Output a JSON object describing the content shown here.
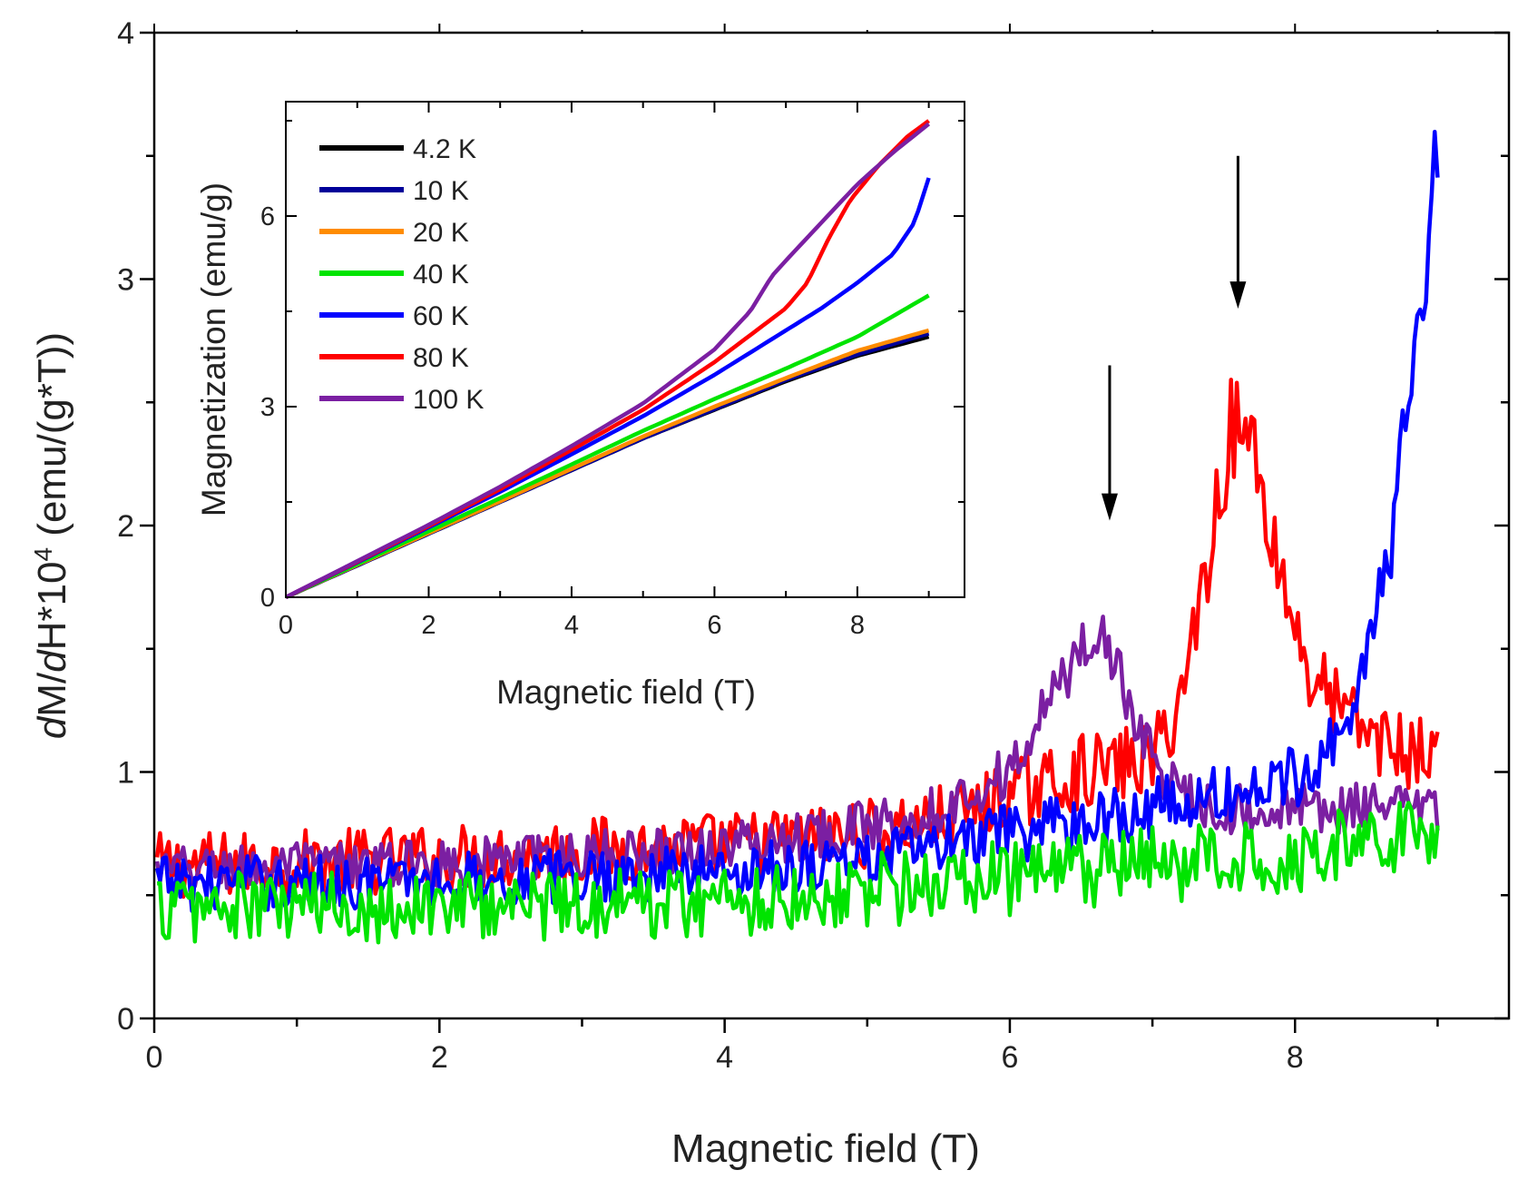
{
  "chart_data": [
    {
      "type": "line",
      "role": "main",
      "xlabel": "Magnetic field (T)",
      "ylabel": {
        "pre": "d",
        "main": "M/",
        "d": "d",
        "h": "H*10",
        "sup": "4",
        "unit": " (emu/(g*T))"
      },
      "xlim": [
        0,
        9.5
      ],
      "ylim": [
        0,
        4
      ],
      "xticks": [
        0,
        2,
        4,
        6,
        8
      ],
      "yticks": [
        0,
        1,
        2,
        3,
        4
      ],
      "grid": false,
      "series": [
        {
          "color": "#ff0000",
          "noise": 0.07,
          "x": [
            0,
            1,
            2,
            3,
            4,
            5,
            5.5,
            6,
            6.5,
            7,
            7.2,
            7.4,
            7.55,
            7.7,
            7.9,
            8.1,
            8.4,
            8.7,
            9.0
          ],
          "y": [
            0.62,
            0.63,
            0.65,
            0.68,
            0.7,
            0.75,
            0.8,
            0.9,
            1.0,
            1.05,
            1.3,
            1.9,
            2.4,
            2.35,
            1.8,
            1.4,
            1.2,
            1.1,
            1.05
          ]
        },
        {
          "color": "#7b1fa2",
          "noise": 0.05,
          "x": [
            0,
            1,
            2,
            3,
            4,
            5,
            5.5,
            6,
            6.3,
            6.5,
            6.65,
            6.75,
            6.9,
            7.1,
            7.5,
            8.0,
            8.5,
            9.0
          ],
          "y": [
            0.6,
            0.62,
            0.63,
            0.66,
            0.7,
            0.78,
            0.85,
            1.0,
            1.3,
            1.5,
            1.6,
            1.4,
            1.2,
            0.95,
            0.85,
            0.85,
            0.85,
            0.85
          ]
        },
        {
          "color": "#0000ff",
          "noise": 0.06,
          "x": [
            0,
            1,
            2,
            3,
            4,
            5,
            6,
            7,
            7.5,
            8,
            8.3,
            8.5,
            8.7,
            8.8,
            8.9,
            9.0
          ],
          "y": [
            0.55,
            0.55,
            0.56,
            0.58,
            0.6,
            0.65,
            0.75,
            0.85,
            0.9,
            0.98,
            1.15,
            1.45,
            2.0,
            2.6,
            3.0,
            3.5
          ]
        },
        {
          "color": "#00e400",
          "noise": 0.08,
          "x": [
            0,
            1,
            2,
            3,
            4,
            5,
            6,
            7,
            8,
            9.0
          ],
          "y": [
            0.45,
            0.45,
            0.46,
            0.47,
            0.48,
            0.52,
            0.57,
            0.62,
            0.67,
            0.78
          ]
        }
      ],
      "arrows": [
        {
          "x": 6.7,
          "y_tail": 2.65,
          "y_head": 2.02
        },
        {
          "x": 7.6,
          "y_tail": 3.5,
          "y_head": 2.88
        }
      ]
    },
    {
      "type": "line",
      "role": "inset",
      "xlabel": "Magnetic field (T)",
      "ylabel": "Magnetization (emu/g)",
      "xlim": [
        0,
        9.5
      ],
      "ylim": [
        0,
        7.8
      ],
      "xticks": [
        0,
        2,
        4,
        6,
        8
      ],
      "yticks": [
        0,
        3,
        6
      ],
      "legend": "top-left",
      "series": [
        {
          "name": "4.2 K",
          "color": "#000000",
          "x": [
            0,
            1,
            2,
            3,
            4,
            5,
            6,
            7,
            8,
            9
          ],
          "y": [
            0,
            0.5,
            1.0,
            1.5,
            2.0,
            2.5,
            2.95,
            3.4,
            3.8,
            4.1
          ]
        },
        {
          "name": "10 K",
          "color": "#000099",
          "x": [
            0,
            1,
            2,
            3,
            4,
            5,
            6,
            7,
            8,
            9
          ],
          "y": [
            0,
            0.5,
            1.0,
            1.5,
            2.0,
            2.5,
            2.96,
            3.42,
            3.82,
            4.15
          ]
        },
        {
          "name": "20 K",
          "color": "#ff8c00",
          "x": [
            0,
            1,
            2,
            3,
            4,
            5,
            6,
            7,
            8,
            9
          ],
          "y": [
            0,
            0.51,
            1.01,
            1.51,
            2.02,
            2.53,
            3.0,
            3.45,
            3.88,
            4.2
          ]
        },
        {
          "name": "40 K",
          "color": "#00e400",
          "x": [
            0,
            1,
            2,
            3,
            4,
            5,
            6,
            7,
            8,
            9
          ],
          "y": [
            0,
            0.52,
            1.04,
            1.56,
            2.09,
            2.62,
            3.12,
            3.6,
            4.1,
            4.75
          ]
        },
        {
          "name": "60 K",
          "color": "#0000ff",
          "x": [
            0,
            1,
            2,
            3,
            4,
            5,
            6,
            7,
            7.5,
            8,
            8.5,
            8.8,
            9
          ],
          "y": [
            0,
            0.55,
            1.1,
            1.66,
            2.25,
            2.85,
            3.5,
            4.2,
            4.55,
            4.95,
            5.4,
            5.9,
            6.6
          ]
        },
        {
          "name": "80 K",
          "color": "#ff0000",
          "x": [
            0,
            1,
            2,
            3,
            4,
            5,
            6,
            7,
            7.3,
            7.6,
            7.9,
            8.3,
            8.7,
            9
          ],
          "y": [
            0,
            0.56,
            1.12,
            1.7,
            2.32,
            2.95,
            3.7,
            4.55,
            4.95,
            5.65,
            6.25,
            6.8,
            7.25,
            7.5
          ]
        },
        {
          "name": "100 K",
          "color": "#7b1fa2",
          "x": [
            0,
            1,
            2,
            3,
            4,
            5,
            6,
            6.5,
            6.8,
            7,
            7.5,
            8,
            8.5,
            9
          ],
          "y": [
            0,
            0.57,
            1.14,
            1.74,
            2.38,
            3.05,
            3.9,
            4.5,
            5.05,
            5.3,
            5.9,
            6.5,
            7.0,
            7.45
          ]
        }
      ]
    }
  ]
}
